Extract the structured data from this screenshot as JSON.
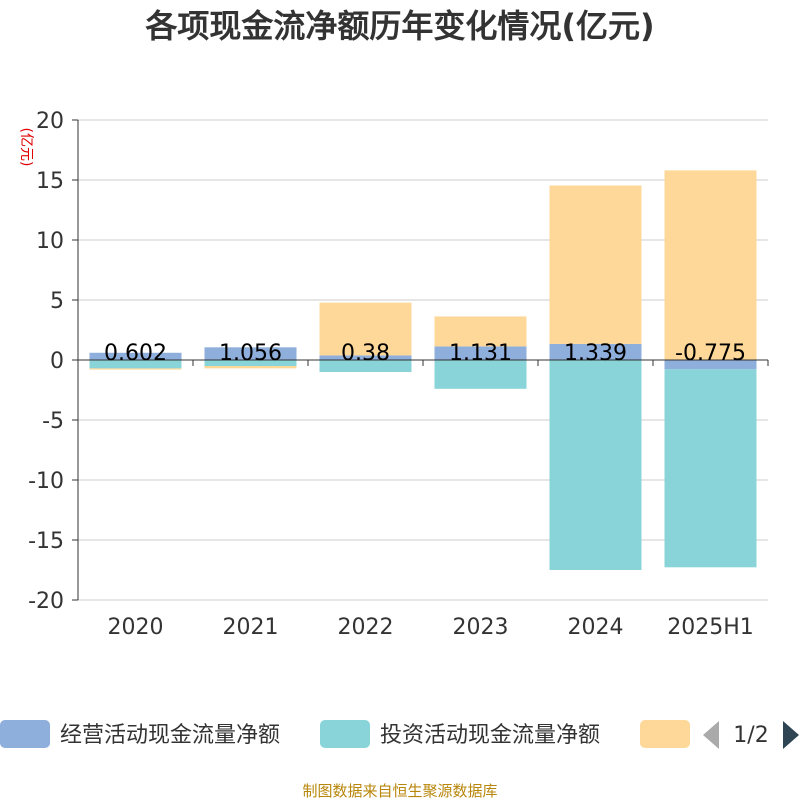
{
  "chart_data": {
    "type": "bar",
    "stacked": true,
    "title": "各项现金流净额历年变化情况(亿元)",
    "ylabel": "(亿元)",
    "ylim": [
      -20,
      20
    ],
    "yticks": [
      20,
      15,
      10,
      5,
      0,
      -5,
      -10,
      -15,
      -20
    ],
    "categories": [
      "2020",
      "2021",
      "2022",
      "2023",
      "2024",
      "2025H1"
    ],
    "series": [
      {
        "name": "经营活动现金流量净额",
        "color": "#8eaedb",
        "values": [
          0.602,
          1.056,
          0.38,
          1.131,
          1.339,
          -0.775
        ],
        "labels": [
          "0.602",
          "1.056",
          "0.38",
          "1.131",
          "1.339",
          "-0.775"
        ]
      },
      {
        "name": "投资活动现金流量净额",
        "color": "#88d4d8",
        "values": [
          -0.7,
          -0.5,
          -1.0,
          -2.4,
          -17.5,
          -16.5
        ]
      },
      {
        "name": "",
        "color": "#fed899",
        "values": [
          -0.1,
          -0.2,
          4.4,
          2.5,
          13.2,
          15.8
        ]
      }
    ],
    "legend": {
      "position": "bottom",
      "page": "1/2"
    }
  },
  "footer": {
    "source": "制图数据来自恒生聚源数据库"
  }
}
